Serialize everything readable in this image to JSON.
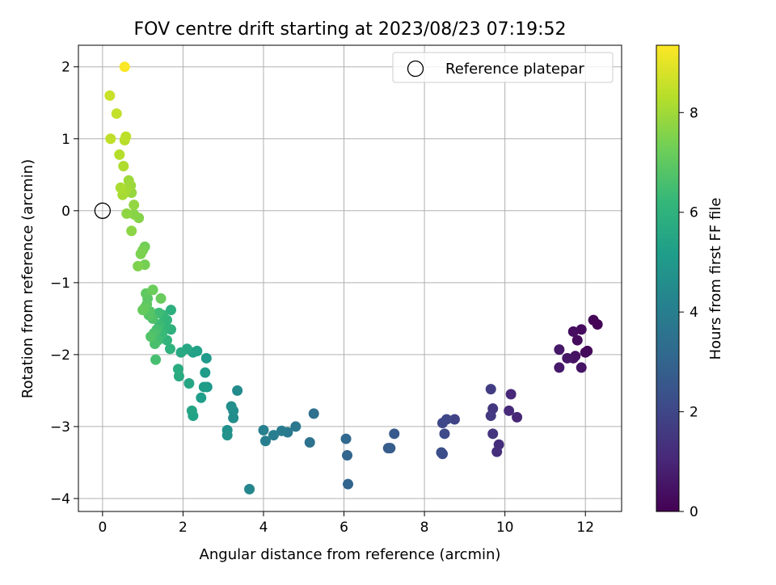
{
  "chart_data": {
    "type": "scatter",
    "title": "FOV centre drift starting at 2023/08/23 07:19:52",
    "xlabel": "Angular distance from reference (arcmin)",
    "ylabel": "Rotation from reference (arcmin)",
    "xlim": [
      -0.6,
      12.9
    ],
    "ylim": [
      -4.18,
      2.3
    ],
    "x_ticks": [
      0,
      2,
      4,
      6,
      8,
      10,
      12
    ],
    "y_ticks": [
      -4,
      -3,
      -2,
      -1,
      0,
      1,
      2
    ],
    "grid": true,
    "legend": {
      "placement": "top-right",
      "entries": [
        "Reference platepar"
      ]
    },
    "reference_point": {
      "name": "Reference platepar",
      "x": 0,
      "y": 0
    },
    "colorbar": {
      "label": "Hours from first FF file",
      "range": [
        0,
        9.35
      ],
      "ticks": [
        0,
        2,
        4,
        6,
        8
      ],
      "colormap": "viridis"
    },
    "points": [
      {
        "x": 12.3,
        "y": -1.58,
        "h": 0.05
      },
      {
        "x": 12.2,
        "y": -1.52,
        "h": 0.1
      },
      {
        "x": 12.05,
        "y": -1.95,
        "h": 0.15
      },
      {
        "x": 12.0,
        "y": -1.97,
        "h": 0.2
      },
      {
        "x": 11.9,
        "y": -1.65,
        "h": 0.25
      },
      {
        "x": 11.8,
        "y": -1.8,
        "h": 0.3
      },
      {
        "x": 11.7,
        "y": -1.68,
        "h": 0.35
      },
      {
        "x": 11.75,
        "y": -2.02,
        "h": 0.4
      },
      {
        "x": 11.7,
        "y": -2.05,
        "h": 0.45
      },
      {
        "x": 11.9,
        "y": -2.18,
        "h": 0.5
      },
      {
        "x": 11.55,
        "y": -2.05,
        "h": 0.55
      },
      {
        "x": 11.35,
        "y": -1.93,
        "h": 0.6
      },
      {
        "x": 11.35,
        "y": -2.18,
        "h": 0.65
      },
      {
        "x": 10.3,
        "y": -2.87,
        "h": 1.0
      },
      {
        "x": 10.15,
        "y": -2.55,
        "h": 1.05
      },
      {
        "x": 10.1,
        "y": -2.78,
        "h": 1.1
      },
      {
        "x": 9.85,
        "y": -3.25,
        "h": 1.2
      },
      {
        "x": 9.8,
        "y": -3.35,
        "h": 1.25
      },
      {
        "x": 9.7,
        "y": -3.1,
        "h": 1.4
      },
      {
        "x": 9.7,
        "y": -2.75,
        "h": 1.5
      },
      {
        "x": 9.65,
        "y": -2.85,
        "h": 1.6
      },
      {
        "x": 9.65,
        "y": -2.48,
        "h": 1.7
      },
      {
        "x": 8.75,
        "y": -2.9,
        "h": 1.9
      },
      {
        "x": 8.55,
        "y": -2.9,
        "h": 2.0
      },
      {
        "x": 8.45,
        "y": -2.95,
        "h": 2.05
      },
      {
        "x": 8.5,
        "y": -3.1,
        "h": 2.1
      },
      {
        "x": 8.45,
        "y": -3.38,
        "h": 2.2
      },
      {
        "x": 8.42,
        "y": -3.36,
        "h": 2.25
      },
      {
        "x": 7.25,
        "y": -3.1,
        "h": 2.6
      },
      {
        "x": 7.15,
        "y": -3.3,
        "h": 2.7
      },
      {
        "x": 7.1,
        "y": -3.3,
        "h": 2.75
      },
      {
        "x": 6.1,
        "y": -3.8,
        "h": 3.0
      },
      {
        "x": 6.08,
        "y": -3.4,
        "h": 3.05
      },
      {
        "x": 6.05,
        "y": -3.17,
        "h": 3.1
      },
      {
        "x": 5.25,
        "y": -2.82,
        "h": 3.4
      },
      {
        "x": 5.15,
        "y": -3.22,
        "h": 3.5
      },
      {
        "x": 4.8,
        "y": -3.0,
        "h": 3.7
      },
      {
        "x": 4.6,
        "y": -3.08,
        "h": 3.8
      },
      {
        "x": 4.45,
        "y": -3.06,
        "h": 3.9
      },
      {
        "x": 4.25,
        "y": -3.12,
        "h": 4.0
      },
      {
        "x": 4.05,
        "y": -3.2,
        "h": 4.05
      },
      {
        "x": 4.0,
        "y": -3.05,
        "h": 4.1
      },
      {
        "x": 3.65,
        "y": -3.87,
        "h": 4.3
      },
      {
        "x": 3.35,
        "y": -2.5,
        "h": 4.5
      },
      {
        "x": 3.25,
        "y": -2.88,
        "h": 4.55
      },
      {
        "x": 3.25,
        "y": -2.78,
        "h": 4.6
      },
      {
        "x": 3.2,
        "y": -2.72,
        "h": 4.65
      },
      {
        "x": 3.1,
        "y": -3.05,
        "h": 4.7
      },
      {
        "x": 3.1,
        "y": -3.12,
        "h": 4.75
      },
      {
        "x": 2.6,
        "y": -2.45,
        "h": 5.0
      },
      {
        "x": 2.58,
        "y": -2.05,
        "h": 5.05
      },
      {
        "x": 2.55,
        "y": -2.25,
        "h": 5.1
      },
      {
        "x": 2.52,
        "y": -2.45,
        "h": 5.15
      },
      {
        "x": 2.45,
        "y": -2.6,
        "h": 5.2
      },
      {
        "x": 2.35,
        "y": -1.95,
        "h": 5.3
      },
      {
        "x": 2.25,
        "y": -1.97,
        "h": 5.35
      },
      {
        "x": 2.25,
        "y": -2.85,
        "h": 5.4
      },
      {
        "x": 2.22,
        "y": -2.78,
        "h": 5.45
      },
      {
        "x": 2.15,
        "y": -2.4,
        "h": 5.5
      },
      {
        "x": 2.1,
        "y": -1.92,
        "h": 5.55
      },
      {
        "x": 1.95,
        "y": -1.97,
        "h": 5.65
      },
      {
        "x": 1.9,
        "y": -2.3,
        "h": 5.7
      },
      {
        "x": 1.88,
        "y": -2.2,
        "h": 5.75
      },
      {
        "x": 1.7,
        "y": -1.38,
        "h": 5.9
      },
      {
        "x": 1.7,
        "y": -1.65,
        "h": 5.95
      },
      {
        "x": 1.68,
        "y": -1.92,
        "h": 6.0
      },
      {
        "x": 1.6,
        "y": -1.8,
        "h": 6.05
      },
      {
        "x": 1.6,
        "y": -1.52,
        "h": 6.1
      },
      {
        "x": 1.55,
        "y": -1.62,
        "h": 6.15
      },
      {
        "x": 1.5,
        "y": -1.45,
        "h": 6.2
      },
      {
        "x": 1.48,
        "y": -1.7,
        "h": 6.25
      },
      {
        "x": 1.45,
        "y": -1.72,
        "h": 6.3
      },
      {
        "x": 1.42,
        "y": -1.58,
        "h": 6.35
      },
      {
        "x": 1.4,
        "y": -1.42,
        "h": 6.4
      },
      {
        "x": 1.38,
        "y": -1.8,
        "h": 6.45
      },
      {
        "x": 1.35,
        "y": -1.65,
        "h": 6.5
      },
      {
        "x": 1.32,
        "y": -2.07,
        "h": 6.55
      },
      {
        "x": 1.3,
        "y": -1.85,
        "h": 6.6
      },
      {
        "x": 1.28,
        "y": -1.7,
        "h": 6.65
      },
      {
        "x": 1.25,
        "y": -1.5,
        "h": 6.7
      },
      {
        "x": 1.2,
        "y": -1.75,
        "h": 6.75
      },
      {
        "x": 1.18,
        "y": -1.4,
        "h": 6.8
      },
      {
        "x": 1.15,
        "y": -1.45,
        "h": 6.85
      },
      {
        "x": 1.12,
        "y": -1.22,
        "h": 6.9
      },
      {
        "x": 1.1,
        "y": -1.3,
        "h": 6.95
      },
      {
        "x": 1.08,
        "y": -1.15,
        "h": 7.0
      },
      {
        "x": 1.05,
        "y": -1.35,
        "h": 7.05
      },
      {
        "x": 1.0,
        "y": -1.38,
        "h": 7.1
      },
      {
        "x": 1.45,
        "y": -1.22,
        "h": 7.15
      },
      {
        "x": 1.25,
        "y": -1.1,
        "h": 7.2
      },
      {
        "x": 1.05,
        "y": -0.5,
        "h": 7.3
      },
      {
        "x": 1.05,
        "y": -0.75,
        "h": 7.35
      },
      {
        "x": 1.0,
        "y": -0.55,
        "h": 7.4
      },
      {
        "x": 0.95,
        "y": -0.6,
        "h": 7.45
      },
      {
        "x": 0.88,
        "y": -0.77,
        "h": 7.5
      },
      {
        "x": 0.9,
        "y": -0.1,
        "h": 7.6
      },
      {
        "x": 0.78,
        "y": -0.05,
        "h": 7.65
      },
      {
        "x": 0.72,
        "y": -0.28,
        "h": 7.7
      },
      {
        "x": 0.6,
        "y": -0.04,
        "h": 7.75
      },
      {
        "x": 0.78,
        "y": 0.08,
        "h": 7.8
      },
      {
        "x": 0.72,
        "y": 0.25,
        "h": 7.85
      },
      {
        "x": 0.7,
        "y": 0.35,
        "h": 7.9
      },
      {
        "x": 0.65,
        "y": 0.42,
        "h": 7.95
      },
      {
        "x": 0.6,
        "y": 0.3,
        "h": 8.0
      },
      {
        "x": 0.55,
        "y": 0.25,
        "h": 8.05
      },
      {
        "x": 0.5,
        "y": 0.22,
        "h": 8.1
      },
      {
        "x": 0.45,
        "y": 0.32,
        "h": 8.15
      },
      {
        "x": 0.52,
        "y": 0.62,
        "h": 8.2
      },
      {
        "x": 0.42,
        "y": 0.78,
        "h": 8.3
      },
      {
        "x": 0.55,
        "y": 0.98,
        "h": 8.35
      },
      {
        "x": 0.58,
        "y": 1.03,
        "h": 8.4
      },
      {
        "x": 0.2,
        "y": 1.0,
        "h": 8.45
      },
      {
        "x": 0.35,
        "y": 1.35,
        "h": 8.5
      },
      {
        "x": 0.18,
        "y": 1.6,
        "h": 8.6
      },
      {
        "x": 0.55,
        "y": 2.0,
        "h": 9.3
      }
    ]
  }
}
